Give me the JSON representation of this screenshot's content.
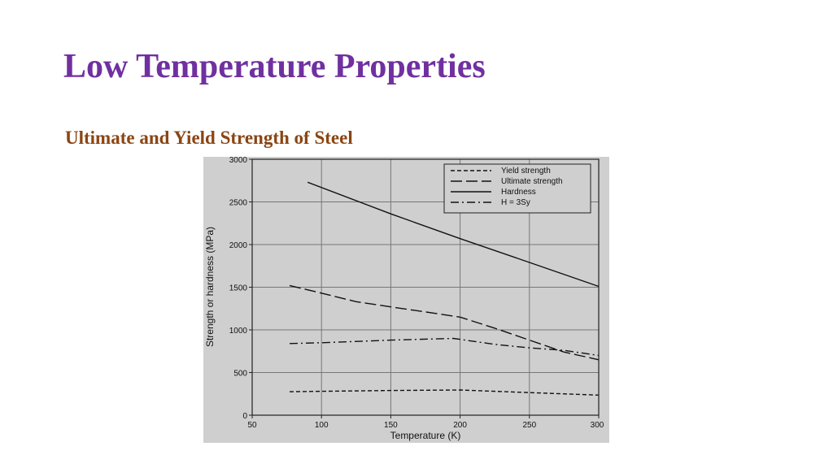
{
  "slide": {
    "title": "Low Temperature Properties",
    "subtitle": "Ultimate and Yield Strength of  Steel"
  },
  "chart_data": {
    "type": "line",
    "xlabel": "Temperature (K)",
    "ylabel": "Strength or hardness (MPa)",
    "xlim": [
      50,
      300
    ],
    "ylim": [
      0,
      3000
    ],
    "x_ticks": [
      50,
      100,
      150,
      200,
      250,
      300
    ],
    "y_ticks": [
      0,
      500,
      1000,
      1500,
      2000,
      2500,
      3000
    ],
    "grid": true,
    "legend_position": "top-right",
    "series": [
      {
        "name": "Yield strength",
        "style": "short-dash",
        "x": [
          77,
          100,
          150,
          200,
          250,
          300
        ],
        "y": [
          275,
          280,
          290,
          295,
          265,
          235
        ]
      },
      {
        "name": "Ultimate strength",
        "style": "long-dash",
        "x": [
          77,
          100,
          125,
          150,
          175,
          200,
          225,
          250,
          275,
          300
        ],
        "y": [
          1520,
          1430,
          1330,
          1270,
          1210,
          1150,
          1020,
          880,
          740,
          650
        ]
      },
      {
        "name": "Hardness",
        "style": "solid",
        "x": [
          90,
          150,
          200,
          250,
          300
        ],
        "y": [
          2730,
          2360,
          2070,
          1790,
          1510
        ]
      },
      {
        "name": "H = 3Sy",
        "style": "dash-dot",
        "x": [
          77,
          100,
          150,
          195,
          225,
          250,
          275,
          300
        ],
        "y": [
          840,
          850,
          880,
          900,
          830,
          790,
          760,
          700
        ]
      }
    ]
  }
}
